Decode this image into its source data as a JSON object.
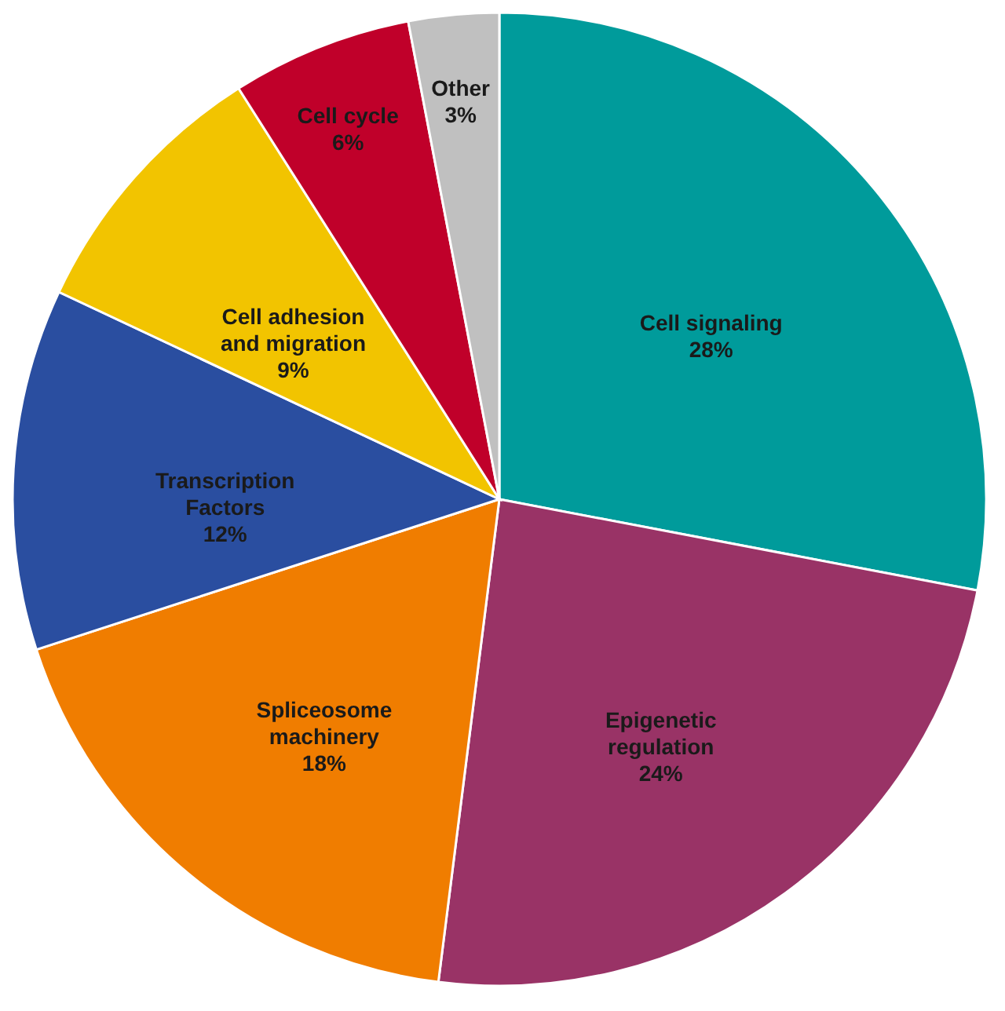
{
  "chart_data": {
    "type": "pie",
    "categories": [
      "Cell signaling",
      "Epigenetic\nregulation",
      "Spliceosome\nmachinery",
      "Transcription\nFactors",
      "Cell adhesion\nand migration",
      "Cell cycle",
      "Other"
    ],
    "values": [
      28,
      24,
      18,
      12,
      9,
      6,
      3
    ],
    "value_labels": [
      "28%",
      "24%",
      "18%",
      "12%",
      "9%",
      "6%",
      "3%"
    ],
    "colors": [
      "#009b9b",
      "#993366",
      "#f07d00",
      "#2a4ea0",
      "#f2c400",
      "#c0002a",
      "#c0c0c0"
    ],
    "legend": false
  }
}
